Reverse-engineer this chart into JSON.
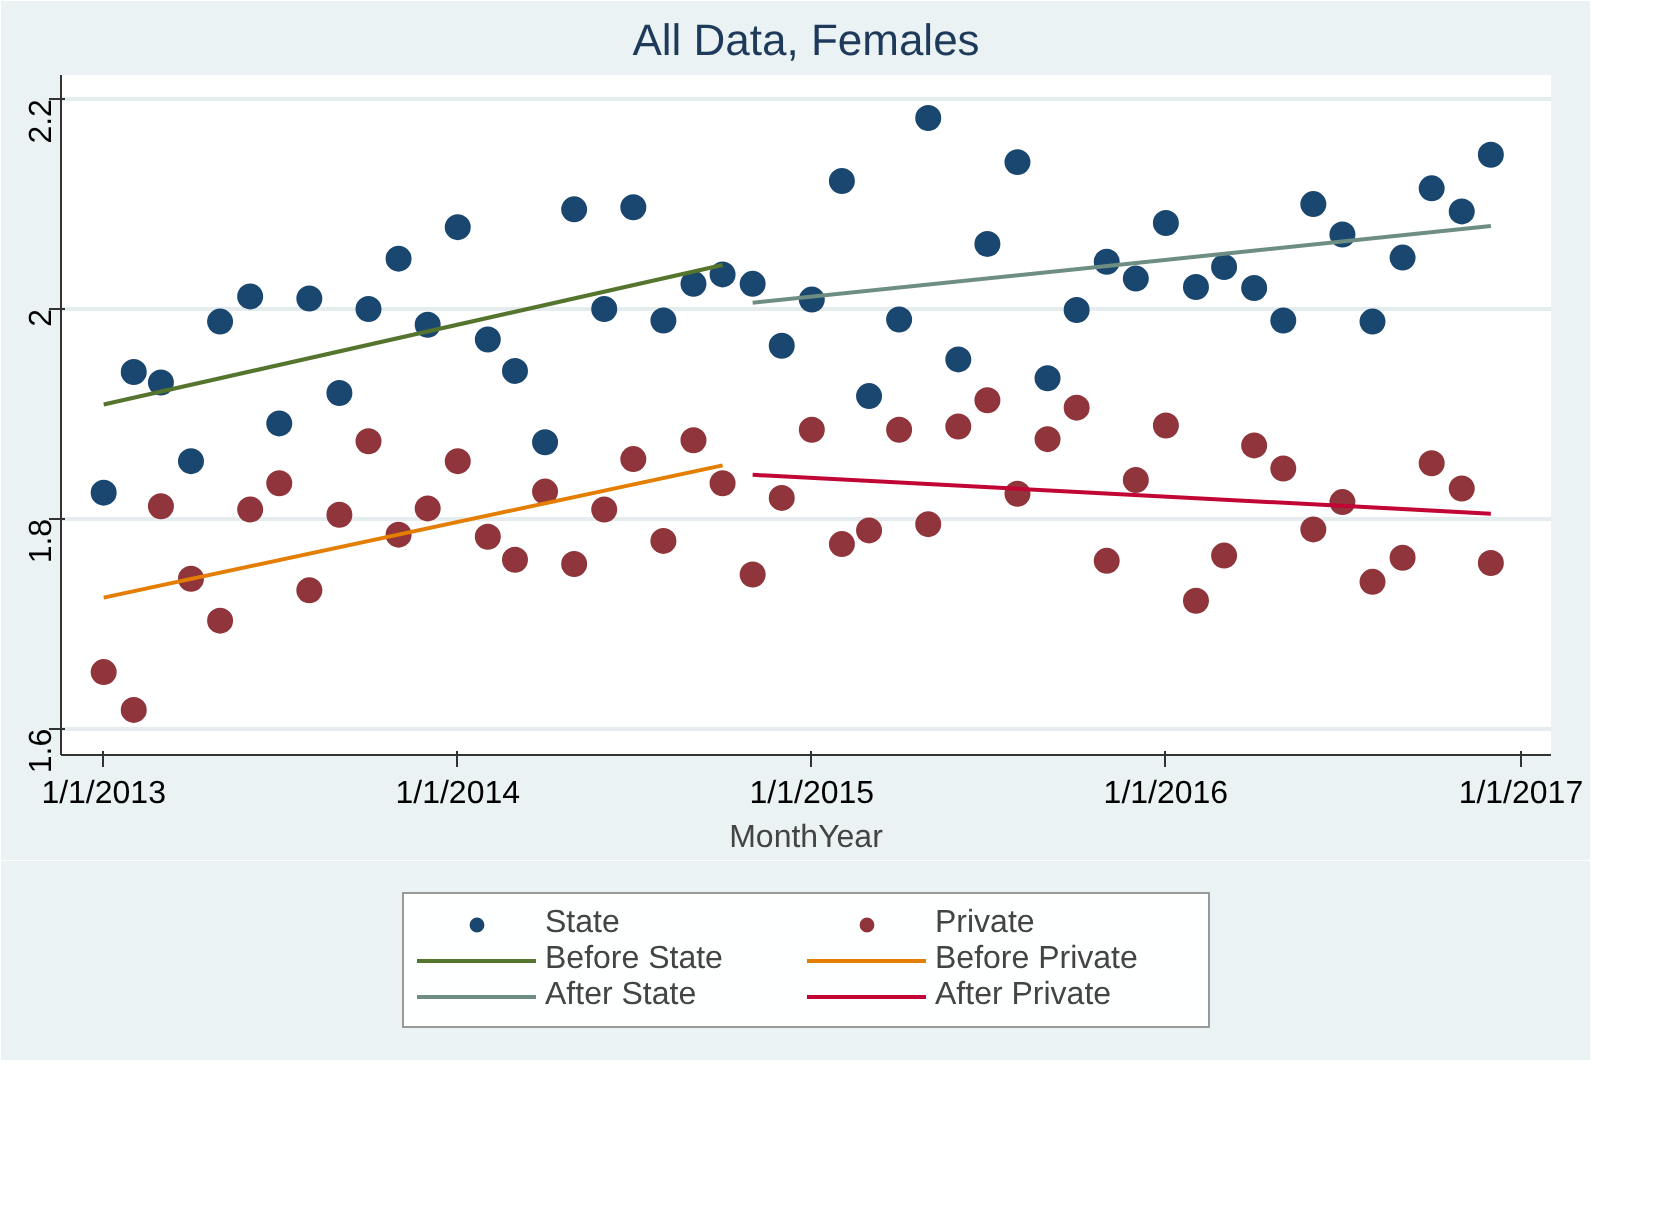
{
  "chart_data": {
    "type": "scatter",
    "title": "All Data, Females",
    "xlabel": "MonthYear",
    "x": [
      "2013-01",
      "2013-02",
      "2013-03",
      "2013-04",
      "2013-05",
      "2013-06",
      "2013-07",
      "2013-08",
      "2013-09",
      "2013-10",
      "2013-11",
      "2013-12",
      "2014-01",
      "2014-02",
      "2014-03",
      "2014-04",
      "2014-05",
      "2014-06",
      "2014-07",
      "2014-08",
      "2014-09",
      "2014-10",
      "2014-11",
      "2014-12",
      "2015-01",
      "2015-02",
      "2015-03",
      "2015-04",
      "2015-05",
      "2015-06",
      "2015-07",
      "2015-08",
      "2015-09",
      "2015-10",
      "2015-11",
      "2015-12",
      "2016-01",
      "2016-02",
      "2016-03",
      "2016-04",
      "2016-05",
      "2016-06",
      "2016-07",
      "2016-08",
      "2016-09",
      "2016-10",
      "2016-11",
      "2016-12"
    ],
    "series": [
      {
        "name": "State",
        "marker": "circle",
        "color": "#1a476f",
        "values": [
          1.825,
          1.94,
          1.93,
          1.855,
          1.988,
          2.012,
          1.891,
          2.01,
          1.92,
          2.0,
          2.048,
          1.985,
          2.078,
          1.971,
          1.941,
          1.873,
          2.095,
          2.0,
          2.097,
          1.989,
          2.024,
          2.033,
          2.024,
          1.965,
          2.009,
          2.122,
          1.917,
          1.99,
          2.182,
          1.952,
          2.062,
          2.14,
          1.934,
          1.999,
          2.045,
          2.029,
          2.082,
          2.021,
          2.04,
          2.02,
          1.989,
          2.1,
          2.071,
          1.988,
          2.049,
          2.115,
          2.093,
          2.147
        ]
      },
      {
        "name": "Private",
        "marker": "circle",
        "color": "#90353b",
        "values": [
          1.654,
          1.618,
          1.812,
          1.743,
          1.703,
          1.809,
          1.834,
          1.732,
          1.804,
          1.874,
          1.785,
          1.81,
          1.855,
          1.783,
          1.761,
          1.826,
          1.757,
          1.809,
          1.857,
          1.779,
          1.875,
          1.834,
          1.747,
          1.82,
          1.885,
          1.776,
          1.789,
          1.885,
          1.795,
          1.888,
          1.913,
          1.824,
          1.876,
          1.906,
          1.76,
          1.837,
          1.889,
          1.722,
          1.765,
          1.87,
          1.848,
          1.79,
          1.816,
          1.74,
          1.763,
          1.853,
          1.829,
          1.758
        ]
      },
      {
        "name": "Before State",
        "type": "line",
        "color": "#55752f",
        "x": [
          "2013-01",
          "2014-10"
        ],
        "values": [
          1.909,
          2.042
        ]
      },
      {
        "name": "Before Private",
        "type": "line",
        "color": "#e37e00",
        "x": [
          "2013-01",
          "2014-10"
        ],
        "values": [
          1.725,
          1.851
        ]
      },
      {
        "name": "After State",
        "type": "line",
        "color": "#6e8e84",
        "x": [
          "2014-11",
          "2016-12"
        ],
        "values": [
          2.006,
          2.079
        ]
      },
      {
        "name": "After Private",
        "type": "line",
        "color": "#c10534",
        "x": [
          "2014-11",
          "2016-12"
        ],
        "values": [
          1.842,
          1.805
        ]
      }
    ],
    "xlim": [
      "2012-11-18",
      "2017-02-01"
    ],
    "xticks": [
      {
        "value": "2013-01-01",
        "label": "1/1/2013"
      },
      {
        "value": "2014-01-01",
        "label": "1/1/2014"
      },
      {
        "value": "2015-01-01",
        "label": "1/1/2015"
      },
      {
        "value": "2016-01-01",
        "label": "1/1/2016"
      },
      {
        "value": "2017-01-01",
        "label": "1/1/2017"
      }
    ],
    "ylim": [
      1.575,
      2.223
    ],
    "yticks": [
      1.6,
      1.8,
      2,
      2.2
    ],
    "grid": "y",
    "legend": "bottom",
    "line_style": "solid"
  }
}
